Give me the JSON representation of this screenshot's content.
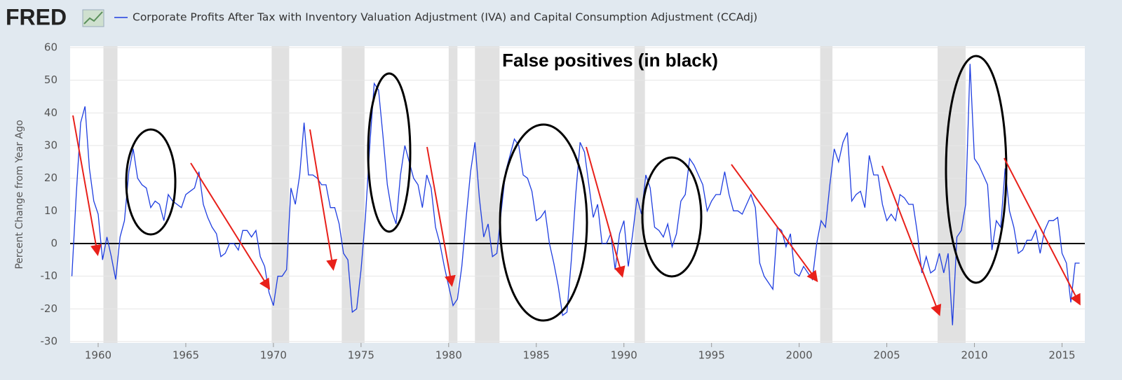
{
  "logo": "FRED",
  "chart_data": {
    "type": "line",
    "title": "False positives (in black)",
    "ylabel": "Percent Change from Year Ago",
    "xlim": [
      1958.4,
      2016.3
    ],
    "ylim": [
      -30,
      60
    ],
    "xticks": [
      1960,
      1965,
      1970,
      1975,
      1980,
      1985,
      1990,
      1995,
      2000,
      2005,
      2010,
      2015
    ],
    "yticks": [
      -30,
      -20,
      -10,
      0,
      10,
      20,
      30,
      40,
      50,
      60
    ],
    "recessions": [
      [
        1960.3,
        1961.1
      ],
      [
        1969.9,
        1970.9
      ],
      [
        1973.9,
        1975.2
      ],
      [
        1980.0,
        1980.5
      ],
      [
        1981.5,
        1982.9
      ],
      [
        1990.6,
        1991.2
      ],
      [
        2001.2,
        2001.9
      ],
      [
        2007.9,
        2009.5
      ]
    ],
    "x": [
      1958.5,
      1958.75,
      1959,
      1959.25,
      1959.5,
      1959.75,
      1960,
      1960.25,
      1960.5,
      1960.75,
      1961,
      1961.25,
      1961.5,
      1961.75,
      1962,
      1962.25,
      1962.5,
      1962.75,
      1963,
      1963.25,
      1963.5,
      1963.75,
      1964,
      1964.25,
      1964.5,
      1964.75,
      1965,
      1965.25,
      1965.5,
      1965.75,
      1966,
      1966.25,
      1966.5,
      1966.75,
      1967,
      1967.25,
      1967.5,
      1967.75,
      1968,
      1968.25,
      1968.5,
      1968.75,
      1969,
      1969.25,
      1969.5,
      1969.75,
      1970,
      1970.25,
      1970.5,
      1970.75,
      1971,
      1971.25,
      1971.5,
      1971.75,
      1972,
      1972.25,
      1972.5,
      1972.75,
      1973,
      1973.25,
      1973.5,
      1973.75,
      1974,
      1974.25,
      1974.5,
      1974.75,
      1975,
      1975.25,
      1975.5,
      1975.75,
      1976,
      1976.25,
      1976.5,
      1976.75,
      1977,
      1977.25,
      1977.5,
      1977.75,
      1978,
      1978.25,
      1978.5,
      1978.75,
      1979,
      1979.25,
      1979.5,
      1979.75,
      1980,
      1980.25,
      1980.5,
      1980.75,
      1981,
      1981.25,
      1981.5,
      1981.75,
      1982,
      1982.25,
      1982.5,
      1982.75,
      1983,
      1983.25,
      1983.5,
      1983.75,
      1984,
      1984.25,
      1984.5,
      1984.75,
      1985,
      1985.25,
      1985.5,
      1985.75,
      1986,
      1986.25,
      1986.5,
      1986.75,
      1987,
      1987.25,
      1987.5,
      1987.75,
      1988,
      1988.25,
      1988.5,
      1988.75,
      1989,
      1989.25,
      1989.5,
      1989.75,
      1990,
      1990.25,
      1990.5,
      1990.75,
      1991,
      1991.25,
      1991.5,
      1991.75,
      1992,
      1992.25,
      1992.5,
      1992.75,
      1993,
      1993.25,
      1993.5,
      1993.75,
      1994,
      1994.25,
      1994.5,
      1994.75,
      1995,
      1995.25,
      1995.5,
      1995.75,
      1996,
      1996.25,
      1996.5,
      1996.75,
      1997,
      1997.25,
      1997.5,
      1997.75,
      1998,
      1998.25,
      1998.5,
      1998.75,
      1999,
      1999.25,
      1999.5,
      1999.75,
      2000,
      2000.25,
      2000.5,
      2000.75,
      2001,
      2001.25,
      2001.5,
      2001.75,
      2002,
      2002.25,
      2002.5,
      2002.75,
      2003,
      2003.25,
      2003.5,
      2003.75,
      2004,
      2004.25,
      2004.5,
      2004.75,
      2005,
      2005.25,
      2005.5,
      2005.75,
      2006,
      2006.25,
      2006.5,
      2006.75,
      2007,
      2007.25,
      2007.5,
      2007.75,
      2008,
      2008.25,
      2008.5,
      2008.75,
      2009,
      2009.25,
      2009.5,
      2009.75,
      2010,
      2010.25,
      2010.5,
      2010.75,
      2011,
      2011.25,
      2011.5,
      2011.75,
      2012,
      2012.25,
      2012.5,
      2012.75,
      2013,
      2013.25,
      2013.5,
      2013.75,
      2014,
      2014.25,
      2014.5,
      2014.75,
      2015,
      2015.25,
      2015.5,
      2015.75,
      2016
    ],
    "series": [
      {
        "name": "Corporate Profits After Tax with Inventory Valuation Adjustment (IVA) and Capital Consumption Adjustment (CCAdj)",
        "color": "#1f3ee0",
        "values": [
          -10,
          15,
          37,
          42,
          23,
          13,
          9,
          -5,
          2,
          -4,
          -11,
          2,
          7,
          22,
          29,
          20,
          18,
          17,
          11,
          13,
          12,
          7,
          15,
          13,
          12,
          11,
          15,
          16,
          17,
          22,
          12,
          8,
          5,
          3,
          -4,
          -3,
          0,
          0,
          -2,
          4,
          4,
          2,
          4,
          -4,
          -7,
          -15,
          -19,
          -10,
          -10,
          -8,
          17,
          12,
          21,
          37,
          21,
          21,
          20,
          18,
          18,
          11,
          11,
          6,
          -3,
          -5,
          -21,
          -20,
          -8,
          8,
          30,
          49,
          47,
          33,
          18,
          10,
          6,
          21,
          30,
          25,
          20,
          18,
          11,
          21,
          17,
          5,
          0,
          -7,
          -13,
          -19,
          -17,
          -7,
          8,
          22,
          31,
          14,
          2,
          6,
          -4,
          -3,
          10,
          22,
          27,
          32,
          30,
          21,
          20,
          16,
          7,
          8,
          10,
          0,
          -6,
          -13,
          -22,
          -21,
          -5,
          15,
          31,
          28,
          18,
          8,
          12,
          0,
          0,
          3,
          -8,
          3,
          7,
          -7,
          3,
          14,
          9,
          21,
          17,
          5,
          4,
          2,
          6,
          -1,
          3,
          13,
          15,
          26,
          24,
          21,
          18,
          10,
          13,
          15,
          15,
          22,
          15,
          10,
          10,
          9,
          12,
          15,
          11,
          -6,
          -10,
          -12,
          -14,
          5,
          4,
          -1,
          3,
          -9,
          -10,
          -7,
          -9,
          -11,
          0,
          7,
          5,
          18,
          29,
          25,
          31,
          34,
          13,
          15,
          16,
          11,
          27,
          21,
          21,
          12,
          7,
          9,
          7,
          15,
          14,
          12,
          12,
          3,
          -9,
          -4,
          -9,
          -8,
          -3,
          -9,
          -3,
          -25,
          2,
          4,
          12,
          55,
          26,
          24,
          21,
          18,
          -2,
          7,
          5,
          23,
          10,
          5,
          -3,
          -2,
          1,
          1,
          4,
          -3,
          4,
          7,
          7,
          8,
          -3,
          -6,
          -18,
          -6,
          -6
        ]
      }
    ]
  }
}
